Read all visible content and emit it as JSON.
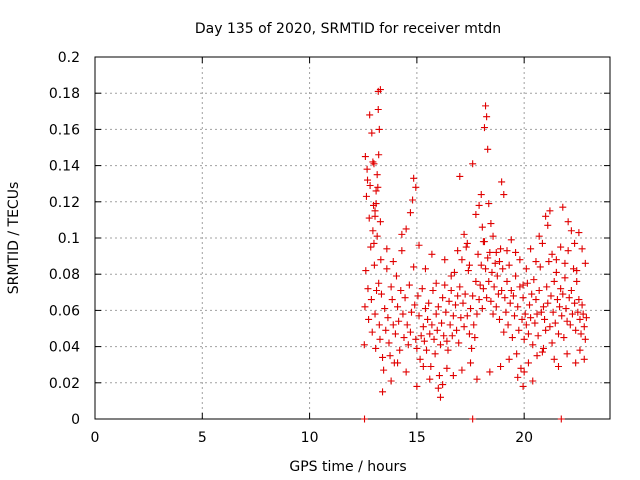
{
  "chart_data": {
    "type": "scatter",
    "title": "Day 135 of 2020, SRMTID for receiver mtdn",
    "xlabel": "GPS time / hours",
    "ylabel": "SRMTID / TECUs",
    "xlim": [
      0,
      24
    ],
    "ylim": [
      0,
      0.2
    ],
    "xticks": [
      0,
      5,
      10,
      15,
      20
    ],
    "xtick_labels": [
      "0",
      "5",
      "10",
      "15",
      "20"
    ],
    "yticks": [
      0,
      0.02,
      0.04,
      0.06,
      0.08,
      0.1,
      0.12,
      0.14,
      0.16,
      0.18,
      0.2
    ],
    "ytick_labels": [
      "0",
      "0.02",
      "0.04",
      "0.06",
      "0.08",
      "0.1",
      "0.12",
      "0.14",
      "0.16",
      "0.18",
      "0.2"
    ],
    "grid": true,
    "marker": "+",
    "color": "#e00000",
    "series": [
      {
        "name": "SRMTID",
        "x": [
          12.55,
          12.58,
          12.62,
          12.65,
          12.68,
          12.72,
          12.75,
          12.78,
          12.82,
          12.85,
          12.88,
          12.92,
          12.95,
          12.98,
          13.02,
          13.05,
          13.08,
          13.12,
          13.15,
          13.18,
          13.22,
          13.25,
          13.28,
          13.32,
          13.35,
          13.4,
          13.45,
          13.5,
          13.55,
          13.6,
          13.65,
          13.7,
          13.75,
          13.8,
          13.85,
          13.9,
          13.95,
          14.0,
          14.05,
          14.1,
          14.15,
          14.2,
          14.25,
          14.3,
          14.35,
          14.4,
          14.45,
          14.5,
          14.55,
          14.6,
          14.65,
          14.7,
          14.75,
          14.8,
          14.85,
          14.9,
          14.95,
          15.0,
          15.05,
          15.1,
          15.15,
          15.2,
          15.25,
          15.3,
          15.35,
          15.4,
          15.45,
          15.5,
          15.55,
          15.6,
          15.65,
          15.7,
          15.75,
          15.8,
          15.85,
          15.9,
          15.95,
          16.0,
          16.05,
          16.1,
          16.15,
          16.2,
          16.25,
          16.3,
          16.35,
          16.4,
          16.45,
          16.5,
          16.55,
          16.6,
          16.65,
          16.7,
          16.75,
          16.8,
          16.85,
          16.9,
          16.95,
          17.0,
          17.05,
          17.1,
          17.15,
          17.2,
          17.25,
          17.3,
          17.35,
          17.4,
          17.45,
          17.5,
          17.55,
          17.6,
          17.65,
          17.7,
          17.75,
          17.8,
          17.85,
          17.9,
          17.95,
          18.0,
          18.05,
          18.1,
          18.15,
          18.2,
          18.25,
          18.3,
          18.35,
          18.4,
          18.45,
          18.5,
          18.55,
          18.6,
          18.65,
          18.7,
          18.75,
          18.8,
          18.85,
          18.9,
          18.95,
          19.0,
          19.05,
          19.1,
          19.15,
          19.2,
          19.25,
          19.3,
          19.35,
          19.4,
          19.45,
          19.5,
          19.55,
          19.6,
          19.65,
          19.7,
          19.75,
          19.8,
          19.85,
          19.9,
          19.95,
          20.0,
          20.05,
          20.1,
          20.15,
          20.2,
          20.25,
          20.3,
          20.35,
          20.4,
          20.45,
          20.5,
          20.55,
          20.6,
          20.65,
          20.7,
          20.75,
          20.8,
          20.85,
          20.9,
          20.95,
          21.0,
          21.05,
          21.1,
          21.15,
          21.2,
          21.25,
          21.3,
          21.35,
          21.4,
          21.45,
          21.5,
          21.55,
          21.6,
          21.65,
          21.7,
          21.75,
          21.8,
          21.85,
          21.9,
          21.95,
          22.0,
          22.05,
          22.1,
          22.15,
          22.2,
          22.25,
          22.3,
          22.35,
          22.4,
          22.45,
          22.5,
          22.55,
          22.6,
          22.65,
          22.7,
          22.75,
          22.8,
          22.85,
          22.9,
          12.6,
          12.7,
          12.8,
          12.9,
          13.0,
          13.1,
          13.2,
          13.3,
          13.2,
          13.25,
          13.05,
          13.1,
          13.0,
          12.95,
          13.3,
          13.15,
          13.22,
          13.05,
          13.6,
          13.9,
          14.3,
          14.7,
          14.85,
          14.95,
          15.1,
          15.4,
          15.7,
          15.9,
          16.3,
          16.6,
          16.9,
          17.0,
          17.2,
          17.35,
          17.45,
          17.6,
          17.75,
          17.9,
          18.0,
          18.05,
          18.1,
          18.15,
          18.2,
          18.25,
          18.3,
          18.35,
          18.45,
          18.55,
          18.7,
          18.85,
          18.95,
          19.05,
          19.2,
          19.4,
          19.6,
          19.8,
          19.95,
          20.1,
          20.3,
          20.55,
          20.7,
          20.85,
          21.0,
          21.1,
          21.2,
          21.3,
          21.5,
          21.7,
          21.8,
          21.9,
          22.05,
          22.2,
          22.35,
          22.45,
          22.55,
          22.7,
          22.85,
          13.4,
          13.8,
          14.1,
          14.5,
          15.0,
          15.3,
          15.6,
          16.0,
          16.1,
          16.2,
          16.4,
          16.7,
          17.1,
          17.5,
          17.8,
          18.4,
          18.9,
          19.3,
          19.7,
          19.95,
          20.0,
          20.2,
          20.4,
          20.6,
          20.9,
          21.4,
          21.6,
          22.0,
          22.4,
          22.6,
          22.8,
          12.56,
          17.6,
          21.73
        ],
        "y": [
          0.041,
          0.062,
          0.082,
          0.123,
          0.138,
          0.072,
          0.055,
          0.111,
          0.129,
          0.095,
          0.066,
          0.048,
          0.142,
          0.118,
          0.085,
          0.058,
          0.039,
          0.071,
          0.101,
          0.128,
          0.075,
          0.052,
          0.044,
          0.088,
          0.069,
          0.034,
          0.027,
          0.061,
          0.049,
          0.083,
          0.056,
          0.042,
          0.035,
          0.073,
          0.066,
          0.052,
          0.031,
          0.047,
          0.079,
          0.062,
          0.054,
          0.038,
          0.071,
          0.093,
          0.058,
          0.045,
          0.067,
          0.105,
          0.052,
          0.041,
          0.074,
          0.048,
          0.059,
          0.121,
          0.084,
          0.063,
          0.044,
          0.039,
          0.068,
          0.057,
          0.033,
          0.046,
          0.072,
          0.051,
          0.043,
          0.061,
          0.038,
          0.055,
          0.064,
          0.047,
          0.029,
          0.052,
          0.071,
          0.044,
          0.036,
          0.058,
          0.049,
          0.062,
          0.024,
          0.041,
          0.053,
          0.067,
          0.046,
          0.074,
          0.059,
          0.043,
          0.038,
          0.065,
          0.052,
          0.071,
          0.046,
          0.057,
          0.081,
          0.063,
          0.049,
          0.068,
          0.042,
          0.073,
          0.056,
          0.088,
          0.064,
          0.051,
          0.069,
          0.095,
          0.057,
          0.082,
          0.047,
          0.061,
          0.039,
          0.068,
          0.052,
          0.045,
          0.076,
          0.058,
          0.091,
          0.066,
          0.074,
          0.085,
          0.061,
          0.072,
          0.098,
          0.083,
          0.067,
          0.089,
          0.076,
          0.092,
          0.065,
          0.081,
          0.058,
          0.073,
          0.086,
          0.062,
          0.079,
          0.069,
          0.055,
          0.094,
          0.071,
          0.083,
          0.048,
          0.067,
          0.059,
          0.076,
          0.052,
          0.085,
          0.064,
          0.071,
          0.045,
          0.068,
          0.057,
          0.079,
          0.036,
          0.062,
          0.049,
          0.073,
          0.028,
          0.055,
          0.067,
          0.044,
          0.058,
          0.052,
          0.075,
          0.047,
          0.063,
          0.056,
          0.069,
          0.041,
          0.077,
          0.053,
          0.066,
          0.058,
          0.046,
          0.071,
          0.084,
          0.059,
          0.037,
          0.062,
          0.055,
          0.049,
          0.073,
          0.064,
          0.087,
          0.051,
          0.068,
          0.042,
          0.059,
          0.076,
          0.053,
          0.081,
          0.066,
          0.047,
          0.062,
          0.072,
          0.057,
          0.069,
          0.045,
          0.078,
          0.061,
          0.054,
          0.093,
          0.067,
          0.052,
          0.071,
          0.058,
          0.083,
          0.064,
          0.049,
          0.076,
          0.059,
          0.066,
          0.055,
          0.047,
          0.063,
          0.058,
          0.051,
          0.044,
          0.056,
          0.145,
          0.132,
          0.168,
          0.158,
          0.141,
          0.126,
          0.181,
          0.182,
          0.171,
          0.16,
          0.112,
          0.119,
          0.097,
          0.104,
          0.109,
          0.135,
          0.146,
          0.115,
          0.094,
          0.087,
          0.102,
          0.114,
          0.133,
          0.128,
          0.096,
          0.083,
          0.091,
          0.075,
          0.088,
          0.079,
          0.093,
          0.134,
          0.102,
          0.097,
          0.085,
          0.141,
          0.113,
          0.118,
          0.124,
          0.106,
          0.098,
          0.161,
          0.173,
          0.167,
          0.149,
          0.119,
          0.108,
          0.101,
          0.092,
          0.087,
          0.131,
          0.124,
          0.093,
          0.099,
          0.092,
          0.088,
          0.074,
          0.083,
          0.094,
          0.087,
          0.101,
          0.097,
          0.112,
          0.107,
          0.115,
          0.091,
          0.088,
          0.095,
          0.117,
          0.086,
          0.109,
          0.104,
          0.097,
          0.082,
          0.103,
          0.094,
          0.086,
          0.015,
          0.021,
          0.031,
          0.026,
          0.018,
          0.029,
          0.022,
          0.017,
          0.012,
          0.019,
          0.028,
          0.024,
          0.027,
          0.031,
          0.022,
          0.026,
          0.029,
          0.033,
          0.023,
          0.018,
          0.026,
          0.031,
          0.021,
          0.035,
          0.039,
          0.033,
          0.029,
          0.036,
          0.031,
          0.038,
          0.033,
          0,
          0,
          0
        ]
      }
    ]
  }
}
